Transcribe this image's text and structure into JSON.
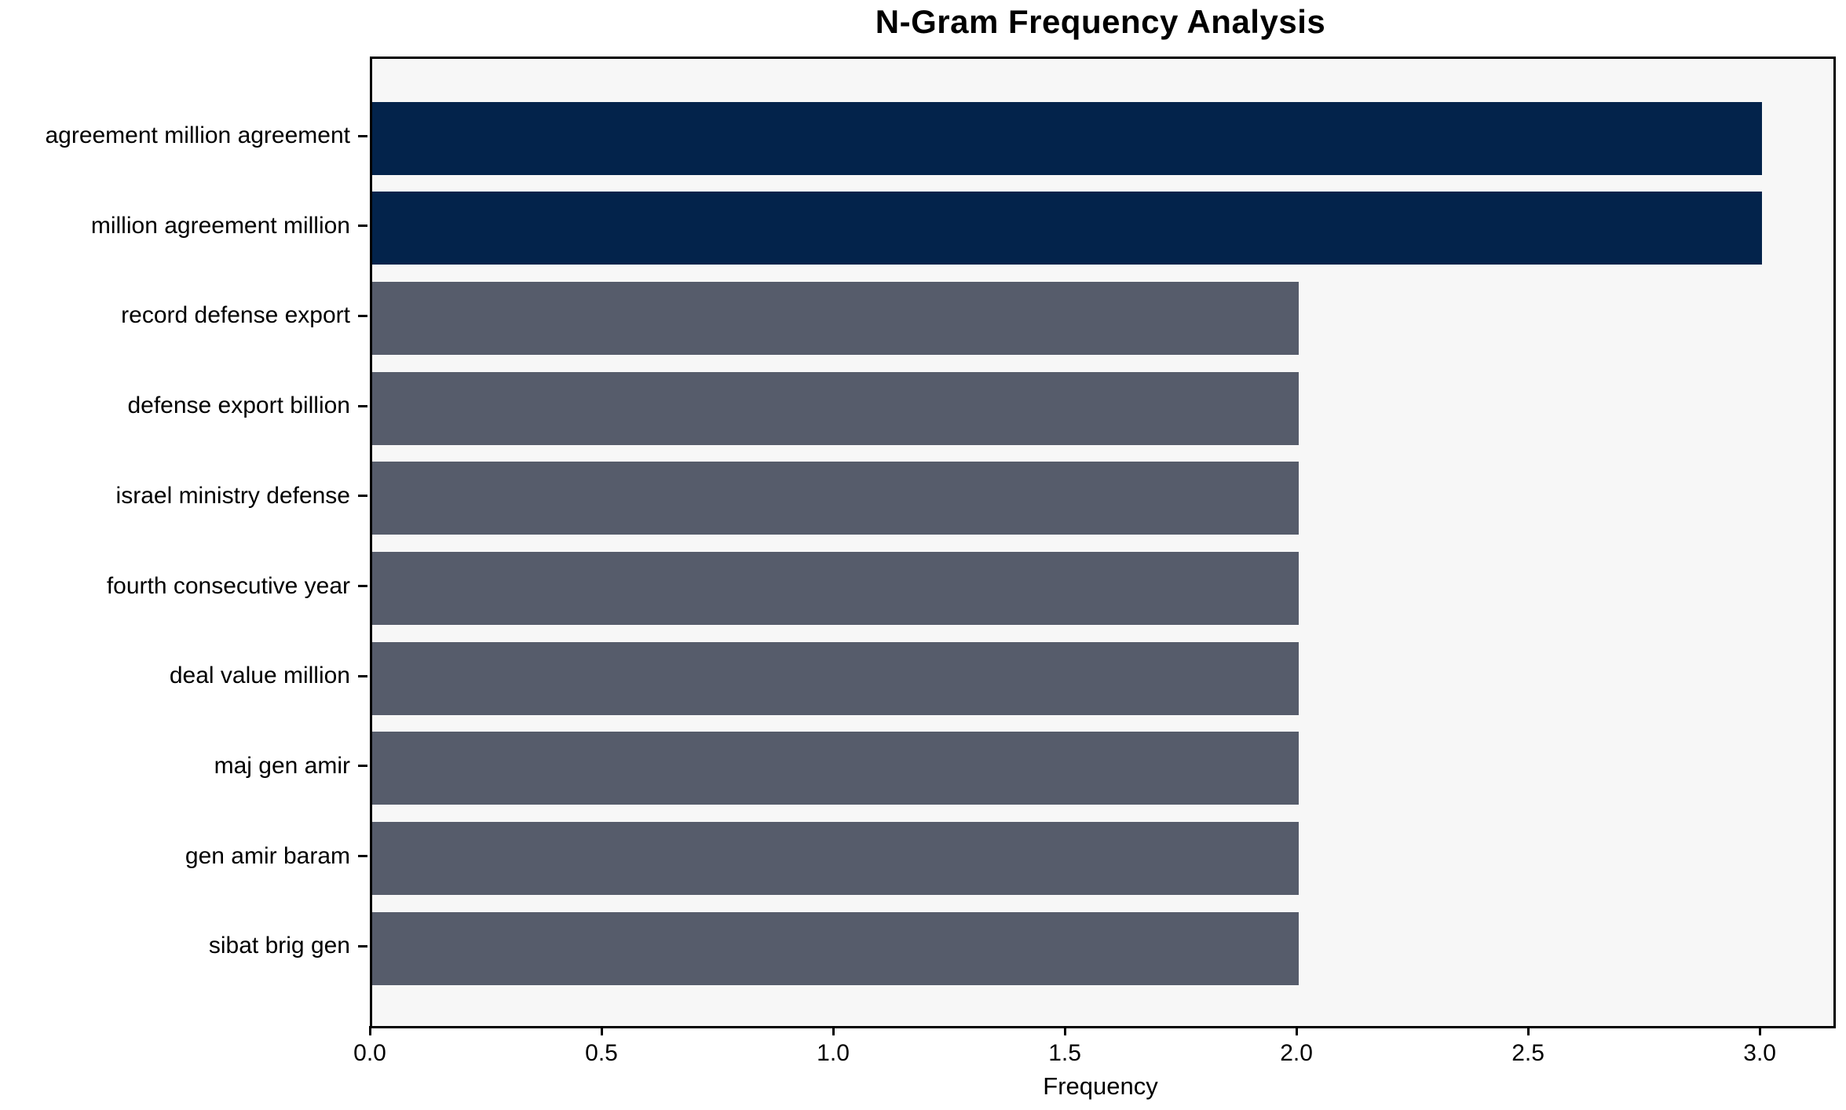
{
  "title": "N-Gram Frequency Analysis",
  "chart_data": {
    "type": "bar",
    "orientation": "horizontal",
    "title": "N-Gram Frequency Analysis",
    "xlabel": "Frequency",
    "ylabel": "",
    "categories": [
      "agreement million agreement",
      "million agreement million",
      "record defense export",
      "defense export billion",
      "israel ministry defense",
      "fourth consecutive year",
      "deal value million",
      "maj gen amir",
      "gen amir baram",
      "sibat brig gen"
    ],
    "values": [
      3,
      3,
      2,
      2,
      2,
      2,
      2,
      2,
      2,
      2
    ],
    "bar_colors": [
      "#03234b",
      "#03234b",
      "#565c6b",
      "#565c6b",
      "#565c6b",
      "#565c6b",
      "#565c6b",
      "#565c6b",
      "#565c6b",
      "#565c6b"
    ],
    "xlim": [
      0,
      3.154
    ],
    "x_ticks": [
      0.0,
      0.5,
      1.0,
      1.5,
      2.0,
      2.5,
      3.0
    ],
    "x_tick_labels": [
      "0.0",
      "0.5",
      "1.0",
      "1.5",
      "2.0",
      "2.5",
      "3.0"
    ],
    "grid": false,
    "legend": "none",
    "colors": {
      "bar_high": "#03234b",
      "bar_normal": "#565c6b",
      "plot_background": "#f7f7f7",
      "figure_background": "#ffffff",
      "spine": "#000000",
      "text": "#000000"
    }
  }
}
